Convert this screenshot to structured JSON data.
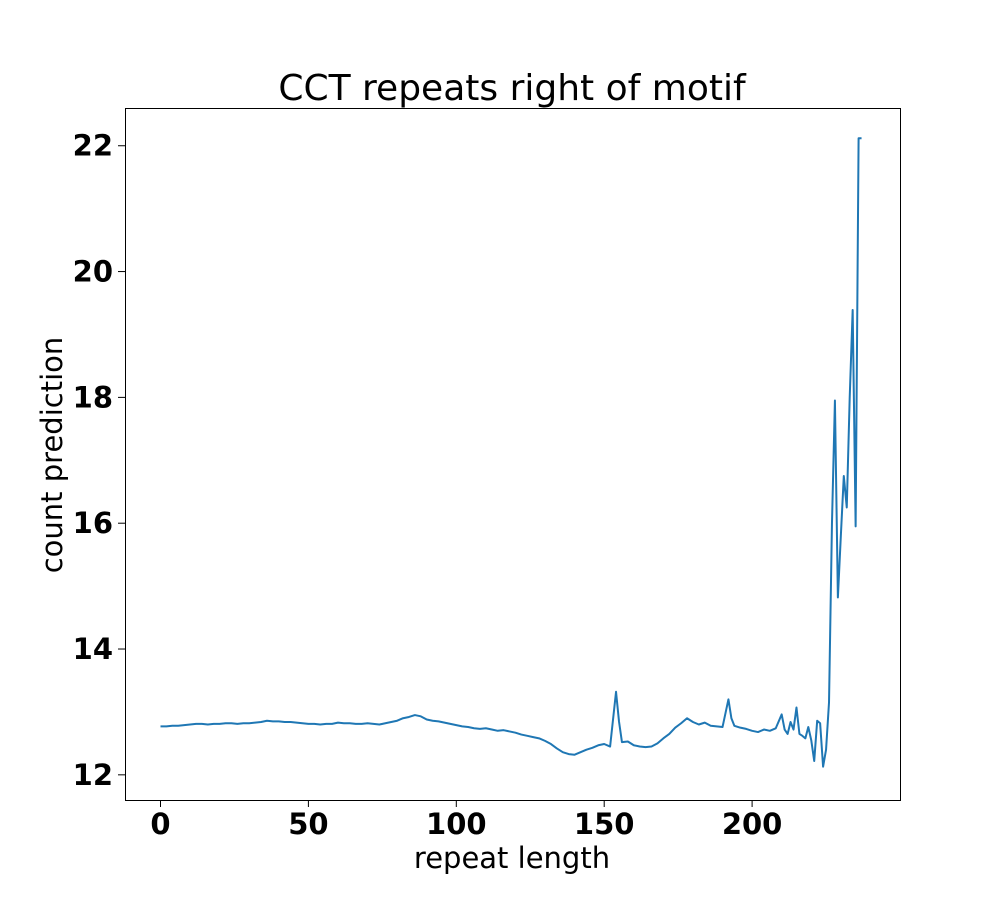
{
  "chart_data": {
    "type": "line",
    "title": "CCT repeats right of motif",
    "xlabel": "repeat length",
    "ylabel": "count prediction",
    "xlim": [
      -12,
      250
    ],
    "ylim": [
      11.6,
      22.6
    ],
    "xticks": [
      0,
      50,
      100,
      150,
      200
    ],
    "yticks": [
      12,
      14,
      16,
      18,
      20,
      22
    ],
    "grid": false,
    "colors": {
      "line": "#1f77b4"
    },
    "series": [
      {
        "x": [
          0,
          2,
          4,
          6,
          8,
          10,
          12,
          14,
          16,
          18,
          20,
          22,
          24,
          26,
          28,
          30,
          32,
          34,
          36,
          38,
          40,
          42,
          44,
          46,
          48,
          50,
          52,
          54,
          56,
          58,
          60,
          62,
          64,
          66,
          68,
          70,
          72,
          74,
          76,
          78,
          80,
          82,
          84,
          86,
          88,
          90,
          92,
          94,
          96,
          98,
          100,
          102,
          104,
          106,
          108,
          110,
          112,
          114,
          116,
          118,
          120,
          122,
          124,
          126,
          128,
          130,
          132,
          134,
          136,
          138,
          140,
          142,
          144,
          146,
          148,
          150,
          152,
          154,
          155,
          156,
          158,
          160,
          162,
          164,
          166,
          168,
          170,
          172,
          174,
          176,
          178,
          180,
          182,
          184,
          186,
          188,
          190,
          192,
          193,
          194,
          196,
          198,
          200,
          202,
          204,
          206,
          208,
          210,
          211,
          212,
          213,
          214,
          215,
          216,
          217,
          218,
          219,
          220,
          221,
          222,
          223,
          224,
          225,
          226,
          227,
          228,
          229,
          230,
          231,
          232,
          233,
          234,
          235,
          236,
          237
        ],
        "y": [
          12.77,
          12.77,
          12.78,
          12.78,
          12.79,
          12.8,
          12.81,
          12.81,
          12.8,
          12.81,
          12.81,
          12.82,
          12.82,
          12.81,
          12.82,
          12.82,
          12.83,
          12.84,
          12.86,
          12.85,
          12.85,
          12.84,
          12.84,
          12.83,
          12.82,
          12.81,
          12.81,
          12.8,
          12.81,
          12.81,
          12.83,
          12.82,
          12.82,
          12.81,
          12.81,
          12.82,
          12.81,
          12.8,
          12.82,
          12.84,
          12.86,
          12.9,
          12.92,
          12.95,
          12.93,
          12.88,
          12.86,
          12.85,
          12.83,
          12.81,
          12.79,
          12.77,
          12.76,
          12.74,
          12.73,
          12.74,
          12.72,
          12.7,
          12.71,
          12.69,
          12.67,
          12.64,
          12.62,
          12.6,
          12.58,
          12.54,
          12.49,
          12.42,
          12.36,
          12.33,
          12.32,
          12.36,
          12.4,
          12.43,
          12.47,
          12.49,
          12.45,
          13.32,
          12.85,
          12.52,
          12.53,
          12.47,
          12.45,
          12.44,
          12.45,
          12.5,
          12.58,
          12.65,
          12.75,
          12.82,
          12.9,
          12.84,
          12.8,
          12.83,
          12.78,
          12.77,
          12.76,
          13.2,
          12.9,
          12.78,
          12.75,
          12.73,
          12.7,
          12.68,
          12.72,
          12.7,
          12.74,
          12.96,
          12.72,
          12.65,
          12.84,
          12.72,
          13.07,
          12.65,
          12.62,
          12.58,
          12.76,
          12.55,
          12.22,
          12.86,
          12.82,
          12.13,
          12.4,
          13.15,
          16.0,
          17.95,
          14.82,
          15.8,
          16.75,
          16.25,
          18.0,
          19.39,
          15.95,
          22.12,
          22.12
        ]
      }
    ]
  }
}
